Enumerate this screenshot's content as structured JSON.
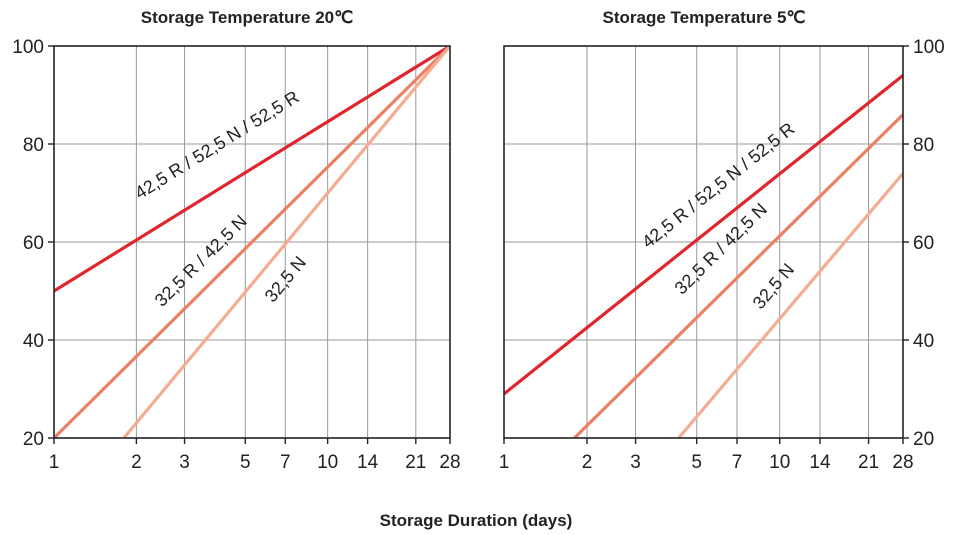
{
  "chart_data": [
    {
      "type": "line",
      "title": "Storage Temperature 20℃",
      "xscale": "log",
      "x_ticks": [
        1,
        2,
        3,
        5,
        7,
        10,
        14,
        21,
        28
      ],
      "y_ticks": [
        20,
        40,
        60,
        80,
        100
      ],
      "xlim": [
        1,
        28
      ],
      "ylim": [
        20,
        100
      ],
      "ytick_side": "left",
      "grid": true,
      "series": [
        {
          "name": "42,5 R / 52,5 N / 52,5 R",
          "color": "#e0252d",
          "x": [
            1,
            28
          ],
          "y": [
            50,
            100
          ]
        },
        {
          "name": "32,5 R / 42,5 N",
          "color": "#ec8063",
          "x": [
            1,
            28
          ],
          "y": [
            20,
            100
          ]
        },
        {
          "name": "32,5 N",
          "color": "#f4ad92",
          "x": [
            1.8,
            28
          ],
          "y": [
            20,
            100
          ]
        }
      ]
    },
    {
      "type": "line",
      "title": "Storage Temperature 5℃",
      "xscale": "log",
      "x_ticks": [
        1,
        2,
        3,
        5,
        7,
        10,
        14,
        21,
        28
      ],
      "y_ticks": [
        20,
        40,
        60,
        80,
        100
      ],
      "xlim": [
        1,
        28
      ],
      "ylim": [
        20,
        100
      ],
      "ytick_side": "right",
      "grid": true,
      "series": [
        {
          "name": "42,5 R / 52,5 N / 52,5 R",
          "color": "#e0252d",
          "x": [
            1,
            28
          ],
          "y": [
            29,
            94
          ]
        },
        {
          "name": "32,5 R / 42,5 N",
          "color": "#ec8063",
          "x": [
            1.8,
            28
          ],
          "y": [
            20,
            86
          ]
        },
        {
          "name": "32,5 N",
          "color": "#f4ad92",
          "x": [
            4.3,
            28
          ],
          "y": [
            20,
            74
          ]
        }
      ]
    }
  ],
  "xlabel": "Storage Duration (days)"
}
